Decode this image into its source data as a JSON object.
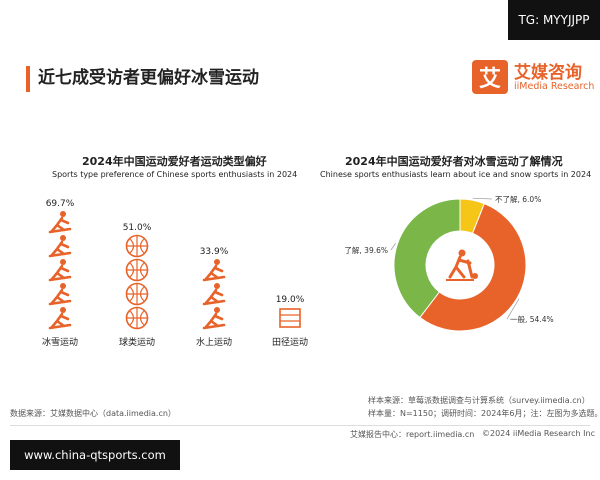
{
  "watermark_top": "TG: MYYJJPP",
  "watermark_bottom": "www.china-qtsports.com",
  "page_title": "近七成受访者更偏好冰雪运动",
  "logo": {
    "glyph": "艾",
    "cn": "艾媒咨询",
    "en": "iiMedia Research"
  },
  "left_chart": {
    "title": "2024年中国运动爱好者运动类型偏好",
    "subtitle": "Sports type preference of Chinese sports enthusiasts in 2024"
  },
  "right_chart": {
    "title": "2024年中国运动爱好者对冰雪运动了解情况",
    "subtitle": "Chinese sports enthusiasts learn about ice and snow sports in 2024"
  },
  "source_left": "数据来源：艾媒数据中心（data.iimedia.cn）",
  "source_right_1": "样本来源：草莓派数据调查与计算系统（survey.iimedia.cn）",
  "source_right_2": "样本量：N=1150；调研时间：2024年6月；注：左图为多选题。",
  "footer_report": "艾媒报告中心：report.iimedia.cn",
  "footer_copy": "©2024  iiMedia Research  Inc",
  "colors": {
    "accent": "#e8632a",
    "green": "#7ab648",
    "yellow": "#f5c518"
  },
  "chart_data": [
    {
      "type": "bar",
      "title": "2024年中国运动爱好者运动类型偏好",
      "subtitle": "Sports type preference of Chinese sports enthusiasts in 2024",
      "categories": [
        "冰雪运动",
        "球类运动",
        "水上运动",
        "田径运动"
      ],
      "values": [
        69.7,
        51.0,
        33.9,
        19.0
      ],
      "labels": [
        "69.7%",
        "51.0%",
        "33.9%",
        "19.0%"
      ],
      "icons": [
        "skier-icon",
        "ball-icon",
        "swimmer-icon",
        "track-icon"
      ]
    },
    {
      "type": "pie",
      "title": "2024年中国运动爱好者对冰雪运动了解情况",
      "subtitle": "Chinese sports enthusiasts learn about ice and snow sports in 2024",
      "categories": [
        "不了解",
        "一般",
        "了解"
      ],
      "values": [
        6.0,
        54.4,
        39.6
      ],
      "labels": [
        "不了解, 6.0%",
        "一般, 54.4%",
        "了解, 39.6%"
      ],
      "colors": [
        "#f5c518",
        "#e8632a",
        "#7ab648"
      ]
    }
  ]
}
